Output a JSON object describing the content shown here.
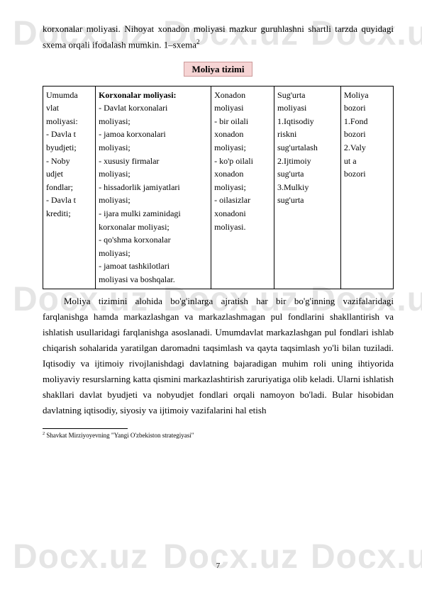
{
  "watermark": "Docx.uz",
  "intro": "korxonalar moliyasi. Nihoyat xonadon moliyasi mazkur guruhlashni shartli tarzda quyidagi sxema orqali ifodalash mumkin. 1–sxema",
  "intro_sup": "2",
  "section_title": "Moliya tizimi",
  "table": {
    "col1": "Umumda\n  vlat\n  moliyasi:\n- Davla t\n  byudjeti;\n- Noby\n  udjet\n  fondlar;\n- Davla t\n  krediti;",
    "col2_head": "Korxonalar moliyasi:",
    "col2": "- Davlat korxonalari\n  moliyasi;\n- jamoa korxonalari\n  moliyasi;\n- xususiy firmalar\n  moliyasi;\n- hissadorlik jamiyatlari\n  moliyasi;\n- ijara mulki zaminidagi\n  korxonalar moliyasi;\n- qo'shma korxonalar\n  moliyasi;\n- jamoat tashkilotlari\n  moliyasi va boshqalar.",
    "col3": "Xonadon\n  moliyasi\n- bir oilali\n  xonadon\n  moliyasi;\n- ko'p oilali\n  xonadon\n  moliyasi;\n- oilasizlar\n  xonadoni\n  moliyasi.",
    "col4": "Sug'urta\n  moliyasi\n  1.Iqtisodiy\nriskni\n  sug'urtalash\n2.Ijtimoiy\n  sug'urta\n  3.Mulkiy\n  sug'urta",
    "col5": "Moliya\n  bozori\n1.Fond\n  bozori\n  2.Valy\n  ut a\n  bozori"
  },
  "body": "Moliya tizimini alohida bo'g'inlarga ajratish har bir bo'g'inning vazifalaridagi farqlanishga hamda markazlashgan va markazlashmagan pul fondlarini shakllantirish va ishlatish usullaridagi farqlanishga asoslanadi. Umumdavlat markazlashgan pul fondlari ishlab chiqarish sohalarida yaratilgan daromadni taqsimlash va qayta taqsimlash yo'li bilan tuziladi. Iqtisodiy va ijtimoiy rivojlanishdagi davlatning bajaradigan muhim roli uning ihtiyorida moliyaviy resurslarning katta qismini markazlashtirish zaruriyatiga olib keladi. Ularni ishlatish shakllari davlat byudjeti va nobyudjet fondlari orqali namoyon bo'ladi. Bular hisobidan davlatning iqtisodiy, siyosiy va ijtimoiy vazifalarini hal etish",
  "footnote_marker": "2",
  "footnote_text": " Shavkat Mirziyoyevning \"Yangi O'zbekiston strategiyasi\"",
  "page_number": "7"
}
